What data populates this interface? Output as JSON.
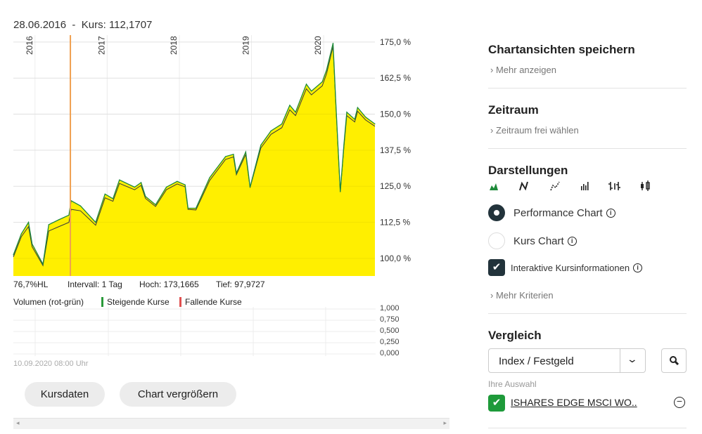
{
  "header": {
    "date": "28.06.2016",
    "separator": "-",
    "kurs_label": "Kurs:",
    "kurs_value": "112,1707"
  },
  "chart_data": {
    "type": "area",
    "x_ticks": [
      "2016",
      "2017",
      "2018",
      "2019",
      "2020"
    ],
    "x_range": [
      2015.7,
      2020.71
    ],
    "y_ticks": [
      "175,0 %",
      "162,5 %",
      "150,0 %",
      "137,5 %",
      "125,0 %",
      "112,5 %",
      "100,0 %"
    ],
    "y_tick_values": [
      175,
      162.5,
      150,
      137.5,
      125,
      112.5,
      100
    ],
    "ylim": [
      93.9,
      177.4
    ],
    "marker_x": 2016.49,
    "colors": {
      "fill": "#ffef00",
      "line": "#1e8a3a",
      "line2": "#3a3a3a",
      "marker": "#f0a050"
    },
    "x": [
      2015.7,
      2015.81,
      2015.91,
      2015.96,
      2016.11,
      2016.19,
      2016.33,
      2016.47,
      2016.5,
      2016.63,
      2016.84,
      2016.97,
      2017.08,
      2017.17,
      2017.38,
      2017.47,
      2017.53,
      2017.67,
      2017.82,
      2017.97,
      2018.08,
      2018.12,
      2018.23,
      2018.42,
      2018.64,
      2018.75,
      2018.79,
      2018.92,
      2018.98,
      2019.13,
      2019.27,
      2019.42,
      2019.53,
      2019.61,
      2019.76,
      2019.83,
      2019.98,
      2020.04,
      2020.13,
      2020.17,
      2020.23,
      2020.28,
      2020.32,
      2020.43,
      2020.47,
      2020.58,
      2020.71
    ],
    "values": [
      101.2,
      108.5,
      112.5,
      105,
      98,
      111.7,
      113.4,
      115,
      120,
      118.2,
      112.5,
      122.3,
      120.7,
      127.2,
      124.7,
      126.3,
      121.5,
      118.6,
      124.7,
      126.7,
      125.5,
      117.4,
      117.4,
      128,
      135.3,
      136.1,
      129.6,
      136.9,
      124.7,
      139.3,
      144.2,
      146.6,
      153.1,
      150.7,
      160.4,
      158,
      161.2,
      165.3,
      174.6,
      153.1,
      123.1,
      139.3,
      150.7,
      148.2,
      152.3,
      149,
      146.6
    ],
    "values2": [
      100.5,
      107.5,
      111,
      104,
      97.5,
      109.5,
      111,
      112.5,
      117,
      116.5,
      111.5,
      121,
      119.8,
      126,
      123.8,
      125.3,
      120.8,
      118,
      123.8,
      125.8,
      124.8,
      117,
      116.8,
      127,
      134.3,
      135.2,
      129,
      136,
      124.5,
      138.3,
      143,
      145.3,
      151.5,
      149.5,
      158.8,
      156.7,
      159.8,
      164,
      173.5,
      152.5,
      123,
      138.5,
      149.5,
      147.3,
      151,
      148,
      145.8
    ]
  },
  "stats": {
    "hl": "76,7%HL",
    "interval": "Intervall: 1 Tag",
    "hoch": "Hoch: 173,1665",
    "tief": "Tief: 97,9727"
  },
  "volume": {
    "title": "Volumen (rot-grün)",
    "rising": "Steigende Kurse",
    "falling": "Fallende Kurse",
    "rising_color": "#2a9a3a",
    "falling_color": "#e05050",
    "ticks": [
      "1,000",
      "0,750",
      "0,500",
      "0,250",
      "0,000"
    ],
    "timestamp": "10.09.2020 08:00 Uhr"
  },
  "buttons": {
    "kursdaten": "Kursdaten",
    "vergroessern": "Chart vergrößern"
  },
  "side": {
    "save_title": "Chartansichten speichern",
    "save_more": "Mehr anzeigen",
    "zeitraum_title": "Zeitraum",
    "zeitraum_more": "Zeitraum frei wählen",
    "darst_title": "Darstellungen",
    "chart_types": [
      "area-chart-icon",
      "line-chart-icon",
      "dotted-line-chart-icon",
      "bar-volume-icon",
      "ohlc-icon",
      "candlestick-icon"
    ],
    "performance": "Performance Chart",
    "kurs": "Kurs Chart",
    "interaktiv": "Interaktive Kursinformationen",
    "mehr_kriterien": "Mehr Kriterien",
    "vergleich_title": "Vergleich",
    "select_value": "Index / Festgeld",
    "ihre_auswahl": "Ihre Auswahl",
    "selection": "ISHARES EDGE MSCI WO..",
    "accent": "#1e9a3a",
    "dark": "#22333b"
  }
}
